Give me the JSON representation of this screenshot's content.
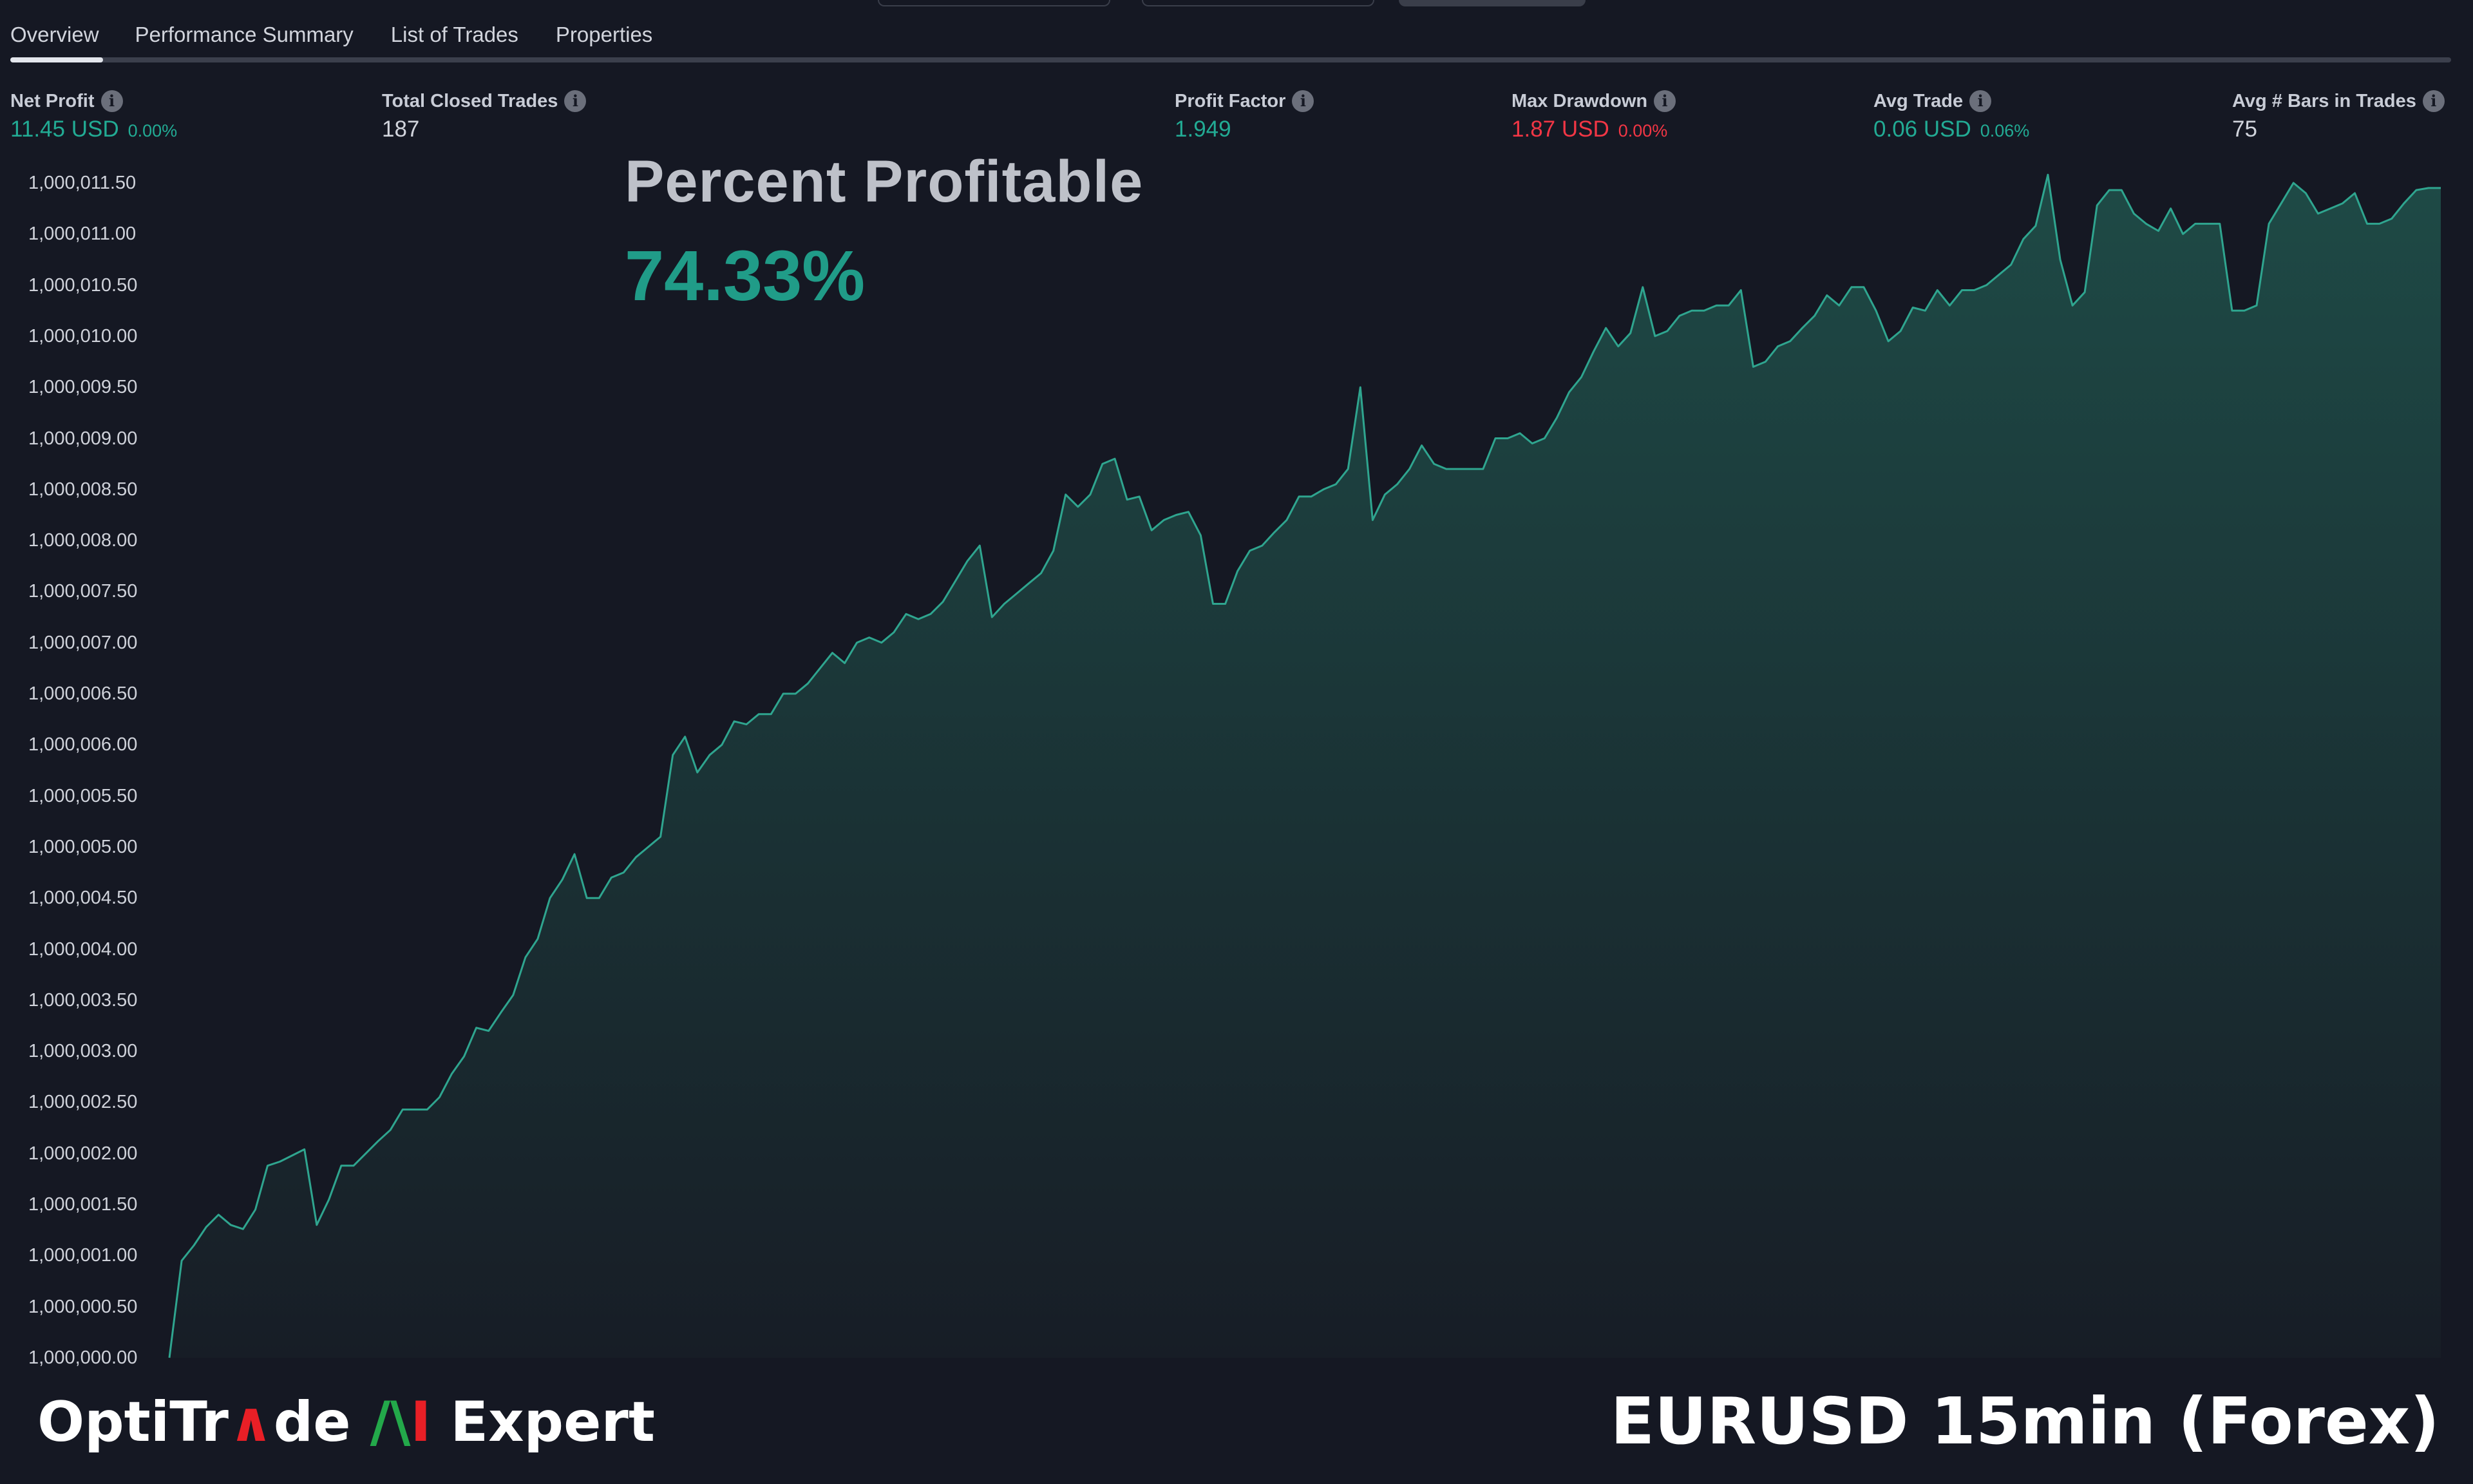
{
  "tabs": {
    "overview": "Overview",
    "performance_summary": "Performance Summary",
    "list_of_trades": "List of Trades",
    "properties": "Properties"
  },
  "metrics": {
    "net_profit": {
      "title": "Net Profit",
      "value": "11.45 USD",
      "pct": "0.00%"
    },
    "total_closed_trades": {
      "title": "Total Closed Trades",
      "value": "187"
    },
    "profit_factor": {
      "title": "Profit Factor",
      "value": "1.949"
    },
    "max_drawdown": {
      "title": "Max Drawdown",
      "value": "1.87 USD",
      "pct": "0.00%"
    },
    "avg_trade": {
      "title": "Avg Trade",
      "value": "0.06 USD",
      "pct": "0.06%"
    },
    "avg_bars": {
      "title": "Avg # Bars in Trades",
      "value": "75"
    }
  },
  "overlay": {
    "title": "Percent Profitable",
    "value": "74.33%"
  },
  "footer": {
    "brand_part1": "OptiTr",
    "brand_a": "∧",
    "brand_part2": "de ",
    "brand_ai_a": "/\\",
    "brand_ai_i": "I",
    "brand_part3": " Expert",
    "symbol": "EURUSD 15min (Forex)"
  },
  "colors": {
    "background": "#151823",
    "line": "#2fa58f",
    "positive": "#22ab94",
    "negative": "#f23645"
  },
  "chart_data": {
    "type": "area",
    "title": "",
    "xlabel": "",
    "ylabel": "",
    "ylim": [
      1000000.0,
      1000011.5
    ],
    "y_ticks": [
      "1,000,011.50",
      "1,000,011.00",
      "1,000,010.50",
      "1,000,010.00",
      "1,000,009.50",
      "1,000,009.00",
      "1,000,008.50",
      "1,000,008.00",
      "1,000,007.50",
      "1,000,007.00",
      "1,000,006.50",
      "1,000,006.00",
      "1,000,005.50",
      "1,000,005.00",
      "1,000,004.50",
      "1,000,004.00",
      "1,000,003.50",
      "1,000,003.00",
      "1,000,002.50",
      "1,000,002.00",
      "1,000,001.50",
      "1,000,001.00",
      "1,000,000.50",
      "1,000,000.00"
    ],
    "grid": false,
    "values": [
      0.0,
      0.95,
      1.1,
      1.28,
      1.4,
      1.3,
      1.26,
      1.45,
      1.88,
      1.92,
      1.98,
      2.04,
      1.3,
      1.55,
      1.88,
      1.88,
      2.0,
      2.12,
      2.23,
      2.43,
      2.43,
      2.43,
      2.55,
      2.78,
      2.95,
      3.23,
      3.2,
      3.38,
      3.55,
      3.92,
      4.1,
      4.5,
      4.68,
      4.93,
      4.5,
      4.5,
      4.7,
      4.75,
      4.9,
      5.0,
      5.1,
      5.9,
      6.08,
      5.73,
      5.9,
      6.0,
      6.23,
      6.2,
      6.3,
      6.3,
      6.5,
      6.5,
      6.6,
      6.75,
      6.9,
      6.8,
      7.0,
      7.05,
      7.0,
      7.1,
      7.28,
      7.23,
      7.28,
      7.4,
      7.6,
      7.8,
      7.95,
      7.25,
      7.38,
      7.48,
      7.58,
      7.68,
      7.9,
      8.45,
      8.33,
      8.45,
      8.75,
      8.8,
      8.4,
      8.43,
      8.1,
      8.2,
      8.25,
      8.28,
      8.05,
      7.38,
      7.38,
      7.7,
      7.9,
      7.95,
      8.08,
      8.2,
      8.43,
      8.43,
      8.5,
      8.55,
      8.7,
      9.5,
      8.2,
      8.45,
      8.55,
      8.7,
      8.93,
      8.75,
      8.7,
      8.7,
      8.7,
      8.7,
      9.0,
      9.0,
      9.05,
      8.95,
      9.0,
      9.2,
      9.45,
      9.6,
      9.85,
      10.08,
      9.9,
      10.03,
      10.48,
      10.0,
      10.05,
      10.2,
      10.25,
      10.25,
      10.3,
      10.3,
      10.45,
      9.7,
      9.75,
      9.9,
      9.95,
      10.08,
      10.2,
      10.4,
      10.3,
      10.48,
      10.48,
      10.25,
      9.95,
      10.05,
      10.28,
      10.25,
      10.45,
      10.3,
      10.45,
      10.45,
      10.5,
      10.6,
      10.7,
      10.95,
      11.08,
      11.58,
      10.75,
      10.3,
      10.43,
      11.28,
      11.43,
      11.43,
      11.2,
      11.1,
      11.03,
      11.25,
      11.0,
      11.1,
      11.1,
      11.1,
      10.25,
      10.25,
      10.3,
      11.1,
      11.3,
      11.5,
      11.4,
      11.2,
      11.25,
      11.3,
      11.4,
      11.1,
      11.1,
      11.15,
      11.3,
      11.43,
      11.45,
      11.45
    ]
  }
}
